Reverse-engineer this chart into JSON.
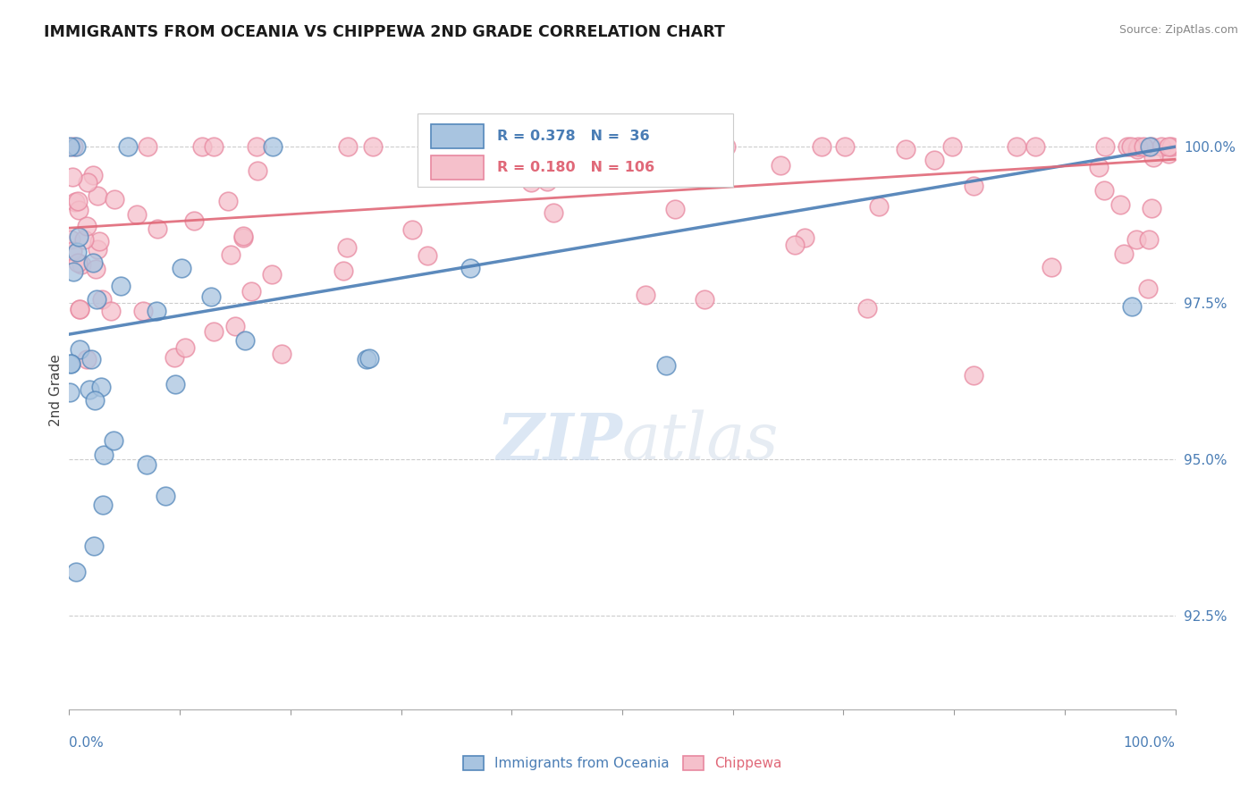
{
  "title": "IMMIGRANTS FROM OCEANIA VS CHIPPEWA 2ND GRADE CORRELATION CHART",
  "source": "Source: ZipAtlas.com",
  "ylabel": "2nd Grade",
  "yticks": [
    92.5,
    95.0,
    97.5,
    100.0
  ],
  "ytick_labels": [
    "92.5%",
    "95.0%",
    "97.5%",
    "100.0%"
  ],
  "xmin": 0.0,
  "xmax": 100.0,
  "ymin": 91.0,
  "ymax": 101.2,
  "legend_blue_label": "Immigrants from Oceania",
  "legend_pink_label": "Chippewa",
  "blue_R": 0.378,
  "blue_N": 36,
  "pink_R": 0.18,
  "pink_N": 106,
  "blue_color": "#a8c4e0",
  "blue_edge_color": "#5588bb",
  "blue_line_color": "#4a7db5",
  "pink_color": "#f5c0cb",
  "pink_edge_color": "#e888a0",
  "pink_line_color": "#e06878",
  "watermark_color": "#d0dff0",
  "blue_line_x0": 0,
  "blue_line_x1": 100,
  "blue_line_y0": 97.0,
  "blue_line_y1": 100.0,
  "pink_line_x0": 0,
  "pink_line_x1": 100,
  "pink_line_y0": 98.7,
  "pink_line_y1": 99.8
}
